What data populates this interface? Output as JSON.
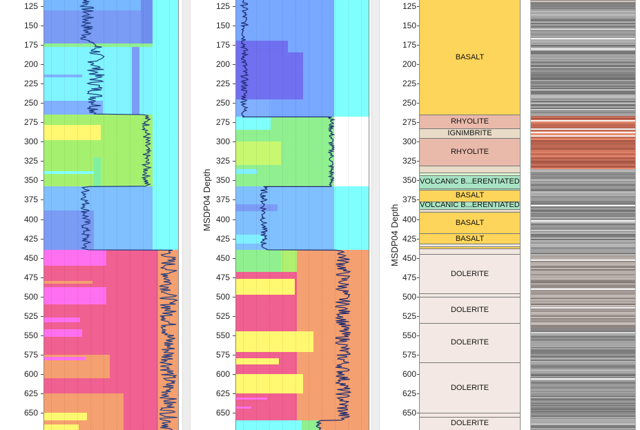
{
  "chart_data": [
    {
      "type": "area",
      "title": "",
      "ylabel": "",
      "ylim": [
        120,
        670
      ],
      "y_reversed": true,
      "yticks": [
        125,
        150,
        175,
        200,
        225,
        250,
        275,
        300,
        325,
        350,
        375,
        400,
        425,
        450,
        475,
        500,
        525,
        550,
        575,
        600,
        625,
        650
      ],
      "grid": true
    },
    {
      "type": "area",
      "title": "",
      "ylabel": "MSDP04 Depth",
      "ylim": [
        120,
        670
      ],
      "y_reversed": true,
      "yticks": [
        125,
        150,
        175,
        200,
        225,
        250,
        275,
        300,
        325,
        350,
        375,
        400,
        425,
        450,
        475,
        500,
        525,
        550,
        575,
        600,
        625,
        650
      ],
      "grid": true
    },
    {
      "type": "table",
      "title": "",
      "ylabel": "MSDP04 Depth",
      "ylim": [
        120,
        670
      ],
      "y_reversed": true,
      "yticks": [
        125,
        150,
        175,
        200,
        225,
        250,
        275,
        300,
        325,
        350,
        375,
        400,
        425,
        450,
        475,
        500,
        525,
        550,
        575,
        600,
        625,
        650
      ],
      "lithology": [
        {
          "top": 100,
          "base": 265,
          "label": "BASALT",
          "color": "#fdd55a"
        },
        {
          "top": 265,
          "base": 283,
          "label": "RHYOLITE",
          "color": "#e9b9aa"
        },
        {
          "top": 283,
          "base": 295,
          "label": "IGNIMBRITE",
          "color": "#e8dcc8"
        },
        {
          "top": 295,
          "base": 331,
          "label": "RHYOLITE",
          "color": "#e9b9aa"
        },
        {
          "top": 331,
          "base": 340,
          "label": "",
          "color": "#e8dcc8"
        },
        {
          "top": 340,
          "base": 343,
          "label": "",
          "color": "#d8f5d0"
        },
        {
          "top": 343,
          "base": 360,
          "label": "VOLCANIC B...ERENTIATED)",
          "color": "#a8e4c4"
        },
        {
          "top": 360,
          "base": 362,
          "label": "",
          "color": "#a8e4c4"
        },
        {
          "top": 362,
          "base": 377,
          "label": "BASALT",
          "color": "#fdd55a"
        },
        {
          "top": 377,
          "base": 387,
          "label": "VOLCANIC B...ERENTIATED)",
          "color": "#a8e4c4"
        },
        {
          "top": 387,
          "base": 391,
          "label": "",
          "color": "#e8dcc8"
        },
        {
          "top": 391,
          "base": 418,
          "label": "BASALT",
          "color": "#fdd55a"
        },
        {
          "top": 418,
          "base": 432,
          "label": "BASALT",
          "color": "#fdd55a"
        },
        {
          "top": 432,
          "base": 435,
          "label": "",
          "color": "#eee8e0"
        },
        {
          "top": 435,
          "base": 438,
          "label": "",
          "color": "#fdd55a"
        },
        {
          "top": 438,
          "base": 445,
          "label": "",
          "color": "#f1e7e2"
        },
        {
          "top": 445,
          "base": 496,
          "label": "DOLERITE",
          "color": "#f3e8e3"
        },
        {
          "top": 496,
          "base": 500,
          "label": "",
          "color": "#f3e8e3"
        },
        {
          "top": 500,
          "base": 534,
          "label": "DOLERITE",
          "color": "#f3e8e3"
        },
        {
          "top": 534,
          "base": 585,
          "label": "DOLERITE",
          "color": "#f3e8e3"
        },
        {
          "top": 585,
          "base": 650,
          "label": "DOLERITE",
          "color": "#f3e8e3"
        },
        {
          "top": 650,
          "base": 655,
          "label": "",
          "color": "#f3e8e3"
        },
        {
          "top": 655,
          "base": 690,
          "label": "DOLERITE",
          "color": "#f3e8e3"
        }
      ]
    }
  ]
}
